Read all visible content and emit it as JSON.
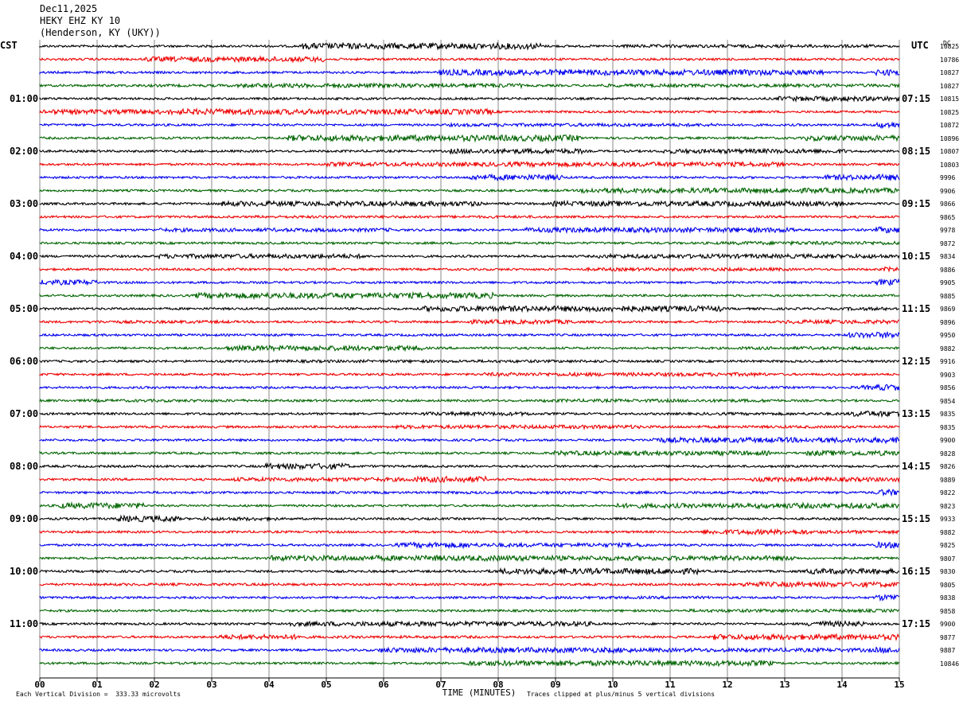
{
  "header": {
    "date": "Dec11,2025",
    "station": "HEKY EHZ KY 10",
    "location": "(Henderson, KY (UKY))"
  },
  "left_axis_label": "CST",
  "right_axis_label": "UTC",
  "dc_label": "DC",
  "footer": {
    "scale": "Each Vertical Division =  333.33 microvolts",
    "clip": "Traces clipped at plus/minus 5 vertical divisions"
  },
  "chart_data": {
    "type": "line",
    "title": "",
    "xlabel": "TIME (MINUTES)",
    "ylabel": "",
    "xlim": [
      0,
      15
    ],
    "x_ticks": [
      "00",
      "01",
      "02",
      "03",
      "04",
      "05",
      "06",
      "07",
      "08",
      "09",
      "10",
      "11",
      "12",
      "13",
      "14",
      "15"
    ],
    "trace_colors": [
      "#000000",
      "#ee0000",
      "#0000ee",
      "#006400"
    ],
    "left_time_labels": [
      "01:00",
      "02:00",
      "03:00",
      "04:00",
      "05:00",
      "06:00",
      "07:00",
      "08:00",
      "09:00",
      "10:00",
      "11:00"
    ],
    "right_time_labels": [
      "07:15",
      "08:15",
      "09:15",
      "10:15",
      "11:15",
      "12:15",
      "13:15",
      "14:15",
      "15:15",
      "16:15",
      "17:15"
    ],
    "dc_offsets": [
      "10825",
      "10786",
      "10827",
      "10827",
      "10815",
      "10825",
      "10872",
      "10896",
      "10807",
      "10803",
      "9996",
      "9906",
      "9866",
      "9865",
      "9978",
      "9872",
      "9834",
      "9886",
      "9905",
      "9885",
      "9869",
      "9896",
      "9950",
      "9882",
      "9916",
      "9903",
      "9856",
      "9854",
      "9835",
      "9835",
      "9900",
      "9828",
      "9826",
      "9889",
      "9822",
      "9823",
      "9933",
      "9882",
      "9825",
      "9807",
      "9830",
      "9805",
      "9838",
      "9858",
      "9900",
      "9877",
      "9887",
      "10846"
    ],
    "grid": true
  }
}
